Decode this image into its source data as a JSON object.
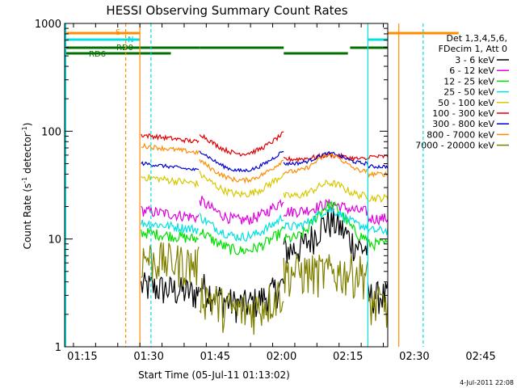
{
  "chart_data": {
    "type": "line",
    "title": "HESSI Observing Summary Count Rates",
    "xlabel": "Start Time (05-Jul-11 01:13:02)",
    "ylabel_main": "Count Rate (s",
    "ylabel_sup1": "-1",
    "ylabel_mid": " detector",
    "ylabel_sup2": "-1",
    "ylabel_end": ")",
    "timestamp": "4-Jul-2011 22:08",
    "y_scale": "log",
    "xlim_minutes": [
      -2,
      71
    ],
    "ylim": [
      1,
      1000
    ],
    "x_ticks": [
      {
        "label": "01:15",
        "min": 2
      },
      {
        "label": "01:30",
        "min": 17
      },
      {
        "label": "01:45",
        "min": 32
      },
      {
        "label": "02:00",
        "min": 47
      },
      {
        "label": "02:15",
        "min": 62
      },
      {
        "label": "02:30",
        "min": 77
      },
      {
        "label": "02:45",
        "min": 92
      }
    ],
    "y_ticks": [
      {
        "label": "1",
        "value": 1
      },
      {
        "label": "10",
        "value": 10
      },
      {
        "label": "100",
        "value": 100
      },
      {
        "label": "1000",
        "value": 1000
      }
    ],
    "legend_header": [
      "Det 1,3,4,5,6,",
      "FDecim 1, Att 0"
    ],
    "series": [
      {
        "name": "3 - 6 keV",
        "color": "#000000",
        "day1": [
          3.5,
          2.5,
          2.3
        ],
        "day2": [
          8.0,
          14.5,
          3.0
        ]
      },
      {
        "name": "6 - 12 keV",
        "color": "#e000e0",
        "day1": [
          17.5,
          15.0,
          15.2
        ],
        "day2": [
          18.0,
          21.0,
          15.5
        ]
      },
      {
        "name": "12 - 25 keV",
        "color": "#00e000",
        "day1": [
          11.0,
          7.8,
          8.0
        ],
        "day2": [
          10.0,
          20.5,
          9.0
        ]
      },
      {
        "name": "25 - 50 keV",
        "color": "#00e0e0",
        "day1": [
          13.5,
          10.5,
          10.8
        ],
        "day2": [
          13.0,
          18.5,
          12.0
        ]
      },
      {
        "name": "50 - 100 keV",
        "color": "#d8c800",
        "day1": [
          36.0,
          26.0,
          27.0
        ],
        "day2": [
          25.0,
          33.0,
          24.0
        ]
      },
      {
        "name": "100 - 300 keV",
        "color": "#e00000",
        "day1": [
          88.0,
          62.0,
          64.0
        ],
        "day2": [
          55.0,
          60.0,
          58.0
        ]
      },
      {
        "name": "300 - 800 keV",
        "color": "#0000d0",
        "day1": [
          48.0,
          43.0,
          44.0
        ],
        "day2": [
          50.0,
          62.0,
          47.0
        ]
      },
      {
        "name": "800 - 7000 keV",
        "color": "#ff8c00",
        "day1": [
          70.0,
          35.0,
          37.0
        ],
        "day2": [
          42.0,
          60.0,
          40.0
        ]
      },
      {
        "name": "7000 - 20000 keV",
        "color": "#808000",
        "day1": [
          6.5,
          2.2,
          2.0
        ],
        "day2": [
          5.0,
          5.0,
          2.5
        ]
      }
    ],
    "flags": [
      {
        "label": "S",
        "color": "#ff8c00"
      },
      {
        "label": "N",
        "color": "#00e0e0"
      },
      {
        "label": "RD0",
        "color": "#007000"
      },
      {
        "label": "RD6",
        "color": "#007000"
      }
    ]
  }
}
